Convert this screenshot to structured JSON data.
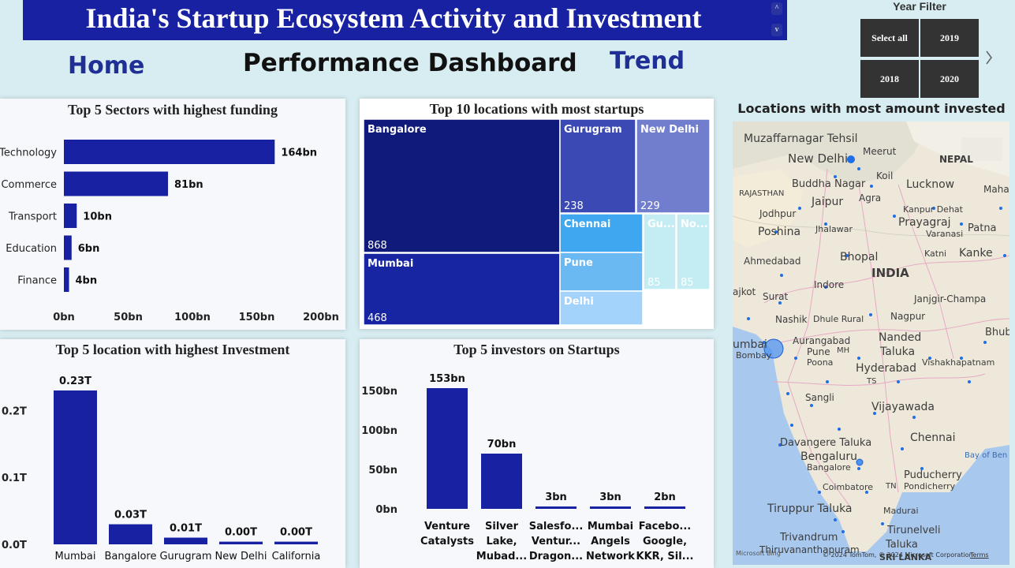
{
  "header": {
    "title": "India's Startup Ecosystem Activity and Investment",
    "scroll_up": "^",
    "scroll_down": "v"
  },
  "nav": {
    "home": "Home",
    "performance": "Performance Dashboard",
    "trend": "Trend"
  },
  "year_filter": {
    "title": "Year Filter",
    "options": [
      "Select all",
      "2019",
      "2018",
      "2020"
    ],
    "next_icon": "chevron-right-icon"
  },
  "colors": {
    "accent": "#1721a1",
    "bar": "#1721a1",
    "background": "#d7edf1"
  },
  "panels": {
    "sectors_title": "Top 5 Sectors with highest funding",
    "locations_startups_title": "Top 10 locations with most startups",
    "map_title": "Locations with most amount invested",
    "invest_locations_title": "Top 5 location with highest Investment",
    "investors_title": "Top 5 investors on Startups"
  },
  "map": {
    "labels": [
      "Muzaffarnagar Tehsil",
      "New Delhi",
      "Meerut",
      "Koil",
      "Buddha Nagar",
      "NEPAL",
      "RAJASTHAN",
      "Agra",
      "Lucknow",
      "Maharaj",
      "Jaipur",
      "Jodhpur",
      "Kanpur Dehat",
      "Prayagraj",
      "Patna",
      "Poshina",
      "Jhalawar",
      "Varanasi",
      "Ahmedabad",
      "Bhopal",
      "Katni",
      "Kanke",
      "INDIA",
      "Indore",
      "ajkot",
      "Surat",
      "Janjgir-Champa",
      "Nashik",
      "Dhule Rural",
      "Nagpur",
      "umbai",
      "Aurangabad",
      "Nanded",
      "Bhubar",
      "Bombay",
      "Pune",
      "Poona",
      "MH",
      "Taluka",
      "Hyderabad",
      "Vishakhapatnam",
      "TS",
      "Sangli",
      "Vijayawada",
      "Davangere Taluka",
      "Chennai",
      "Bengaluru",
      "Bangalore",
      "Bay of Ben",
      "Puducherry",
      "Pondicherry",
      "Coimbatore",
      "TN",
      "Tiruppur Taluka",
      "Madurai",
      "Tirunelveli",
      "Trivandrum",
      "Taluka",
      "Thiruvananthapuram",
      "SRI LANKA"
    ],
    "attribution": "© 2024 TomTom, © 2024 Microsoft Corporation",
    "terms": "Terms",
    "provider": "Microsoft Bing"
  },
  "chart_data": [
    {
      "type": "bar",
      "orientation": "horizontal",
      "title": "Top 5 Sectors with highest funding",
      "categories": [
        "Technology",
        "Commerce",
        "Transport",
        "Education",
        "Finance"
      ],
      "values": [
        164,
        81,
        10,
        6,
        4
      ],
      "value_labels": [
        "164bn",
        "81bn",
        "10bn",
        "6bn",
        "4bn"
      ],
      "xlim": [
        0,
        200
      ],
      "xticks": [
        "0bn",
        "50bn",
        "100bn",
        "150bn",
        "200bn"
      ]
    },
    {
      "type": "treemap",
      "title": "Top 10 locations with most startups",
      "items": [
        {
          "name": "Bangalore",
          "value": 868,
          "label": "868",
          "color": "#0f1a7a"
        },
        {
          "name": "Mumbai",
          "value": 468,
          "label": "468",
          "color": "#1725a3"
        },
        {
          "name": "Gurugram",
          "value": 238,
          "label": "238",
          "color": "#3a49b4"
        },
        {
          "name": "New Delhi",
          "value": 229,
          "label": "229",
          "color": "#717ecd"
        },
        {
          "name": "Chennai",
          "label": "",
          "color": "#3ea7ef"
        },
        {
          "name": "Pune",
          "label": "",
          "color": "#6ab9f3"
        },
        {
          "name": "Delhi",
          "label": "",
          "color": "#a3d2fb"
        },
        {
          "name": "Gu...",
          "value": 85,
          "label": "85",
          "color": "#c4ecf3"
        },
        {
          "name": "No...",
          "value": 85,
          "label": "85",
          "color": "#c4ecf3"
        }
      ]
    },
    {
      "type": "bar",
      "title": "Top 5 location with highest Investment",
      "categories": [
        "Mumbai",
        "Bangalore",
        "Gurugram",
        "New Delhi",
        "California"
      ],
      "values": [
        0.23,
        0.03,
        0.01,
        0.004,
        0.004
      ],
      "value_labels": [
        "0.23T",
        "0.03T",
        "0.01T",
        "0.00T",
        "0.00T"
      ],
      "ylim": [
        0,
        0.25
      ],
      "yticks": [
        "0.0T",
        "0.1T",
        "0.2T"
      ]
    },
    {
      "type": "bar",
      "title": "Top 5 investors on Startups",
      "categories": [
        [
          "Venture",
          "Catalysts"
        ],
        [
          "Silver",
          "Lake,",
          "Mubad..."
        ],
        [
          "Salesfo...",
          "Ventur...",
          "Dragon..."
        ],
        [
          "Mumbai",
          "Angels",
          "Network"
        ],
        [
          "Facebo...",
          "Google,",
          "KKR, Sil..."
        ]
      ],
      "values": [
        153,
        70,
        3,
        3,
        2
      ],
      "value_labels": [
        "153bn",
        "70bn",
        "3bn",
        "3bn",
        "2bn"
      ],
      "ylim": [
        0,
        160
      ],
      "yticks": [
        "0bn",
        "50bn",
        "100bn",
        "150bn"
      ]
    }
  ]
}
